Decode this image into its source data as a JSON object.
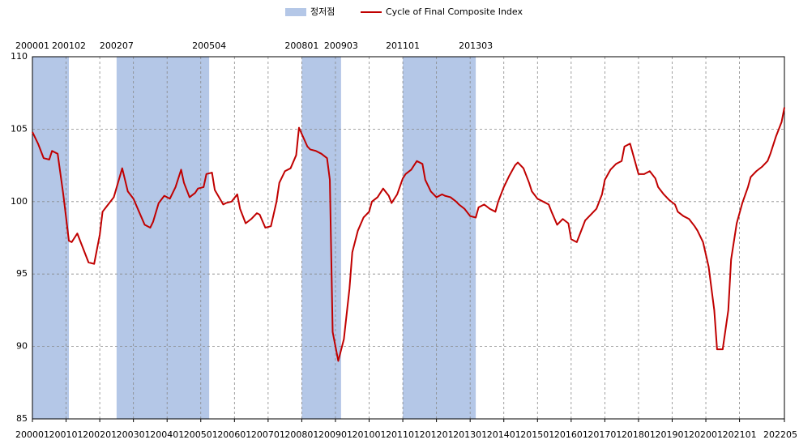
{
  "chart_data": {
    "type": "line",
    "xlim": [
      "200001",
      "202205"
    ],
    "xticks": [
      "200001",
      "200101",
      "200201",
      "200301",
      "200401",
      "200501",
      "200601",
      "200701",
      "200801",
      "200901",
      "201001",
      "201101",
      "201201",
      "201301",
      "201401",
      "201501",
      "201601",
      "201701",
      "201801",
      "201901",
      "202001",
      "202101",
      "202205"
    ],
    "ylim": [
      85,
      110
    ],
    "yticks": [
      85,
      90,
      95,
      100,
      105,
      110
    ],
    "grid": true,
    "bands": {
      "name": "정저점",
      "color": "#b4c7e7",
      "ranges": [
        [
          "200001",
          "200102"
        ],
        [
          "200207",
          "200504"
        ],
        [
          "200801",
          "200903"
        ],
        [
          "201101",
          "201303"
        ]
      ]
    },
    "series": [
      {
        "name": "Cycle of Final Composite Index",
        "color": "#c00000",
        "x": [
          "200001",
          "200003",
          "200005",
          "200007",
          "200008",
          "200010",
          "200012",
          "200102",
          "200103",
          "200105",
          "200106",
          "200109",
          "200111",
          "200201",
          "200202",
          "200204",
          "200206",
          "200209",
          "200211",
          "200301",
          "200303",
          "200305",
          "200307",
          "200308",
          "200310",
          "200312",
          "200402",
          "200404",
          "200406",
          "200407",
          "200409",
          "200411",
          "200412",
          "200502",
          "200503",
          "200505",
          "200506",
          "200509",
          "200510",
          "200512",
          "200602",
          "200603",
          "200605",
          "200607",
          "200609",
          "200610",
          "200612",
          "200702",
          "200704",
          "200705",
          "200707",
          "200709",
          "200711",
          "200712",
          "200803",
          "200804",
          "200806",
          "200808",
          "200810",
          "200811",
          "200812",
          "200902",
          "200904",
          "200906",
          "200907",
          "200909",
          "200911",
          "201001",
          "201002",
          "201004",
          "201006",
          "201008",
          "201009",
          "201011",
          "201101",
          "201102",
          "201104",
          "201106",
          "201108",
          "201109",
          "201111",
          "201201",
          "201203",
          "201204",
          "201206",
          "201208",
          "201209",
          "201211",
          "201301",
          "201303",
          "201304",
          "201306",
          "201308",
          "201310",
          "201311",
          "201401",
          "201403",
          "201405",
          "201406",
          "201408",
          "201410",
          "201411",
          "201501",
          "201503",
          "201505",
          "201506",
          "201508",
          "201510",
          "201512",
          "201601",
          "201603",
          "201605",
          "201606",
          "201608",
          "201610",
          "201612",
          "201701",
          "201703",
          "201705",
          "201707",
          "201708",
          "201710",
          "201712",
          "201801",
          "201803",
          "201805",
          "201807",
          "201808",
          "201810",
          "201812",
          "201902",
          "201903",
          "201905",
          "201907",
          "201909",
          "201910",
          "201912",
          "202002",
          "202004",
          "202005",
          "202007",
          "202009",
          "202010",
          "202012",
          "202102",
          "202104",
          "202105",
          "202107",
          "202109",
          "202111",
          "202112",
          "202202",
          "202204",
          "202205"
        ],
        "values": [
          104.8,
          104.0,
          103.0,
          102.9,
          103.5,
          103.3,
          100.5,
          97.3,
          97.2,
          97.8,
          97.3,
          95.8,
          95.7,
          97.7,
          99.3,
          99.8,
          100.3,
          102.3,
          100.7,
          100.2,
          99.3,
          98.4,
          98.2,
          98.6,
          99.9,
          100.4,
          100.2,
          101.0,
          102.2,
          101.3,
          100.3,
          100.6,
          100.9,
          101.0,
          101.9,
          102.0,
          100.8,
          99.8,
          99.9,
          100.0,
          100.5,
          99.5,
          98.5,
          98.8,
          99.2,
          99.1,
          98.2,
          98.3,
          100.0,
          101.3,
          102.1,
          102.3,
          103.2,
          105.1,
          103.8,
          103.6,
          103.5,
          103.3,
          103.0,
          101.5,
          91.0,
          89.0,
          90.5,
          94.0,
          96.5,
          98.0,
          98.9,
          99.3,
          100.0,
          100.3,
          100.9,
          100.4,
          99.9,
          100.5,
          101.6,
          101.9,
          102.2,
          102.8,
          102.6,
          101.5,
          100.7,
          100.3,
          100.5,
          100.4,
          100.3,
          100.0,
          99.8,
          99.5,
          99.0,
          98.9,
          99.6,
          99.8,
          99.5,
          99.3,
          100.0,
          101.0,
          101.8,
          102.5,
          102.7,
          102.3,
          101.3,
          100.7,
          100.2,
          100.0,
          99.8,
          99.3,
          98.4,
          98.8,
          98.5,
          97.4,
          97.2,
          98.2,
          98.7,
          99.1,
          99.5,
          100.5,
          101.5,
          102.2,
          102.6,
          102.8,
          103.8,
          104.0,
          102.6,
          101.9,
          101.9,
          102.1,
          101.6,
          101.0,
          100.5,
          100.1,
          99.8,
          99.3,
          99.0,
          98.8,
          98.3,
          98.0,
          97.2,
          95.5,
          92.5,
          89.8,
          89.8,
          92.5,
          96.0,
          98.5,
          99.9,
          101.0,
          101.7,
          102.1,
          102.4,
          102.8,
          103.3,
          104.5,
          105.5,
          106.5
        ]
      }
    ]
  }
}
